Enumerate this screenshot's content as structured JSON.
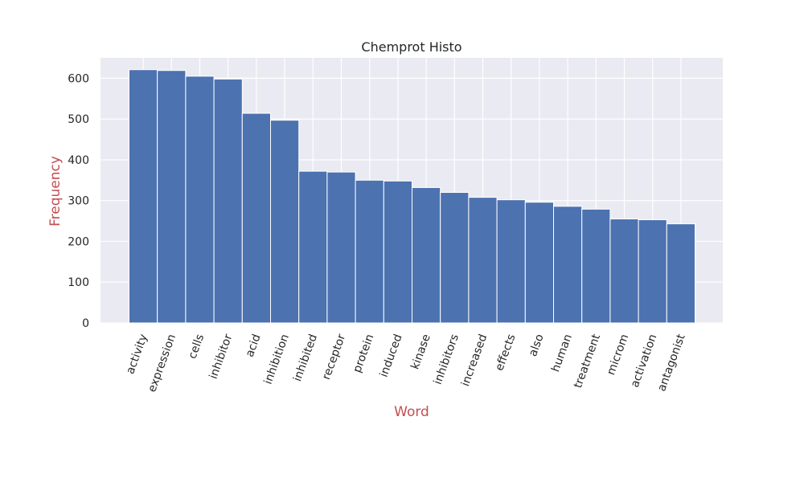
{
  "chart_data": {
    "type": "bar",
    "title": "Chemprot Histo",
    "xlabel": "Word",
    "ylabel": "Frequency",
    "categories": [
      "activity",
      "expression",
      "cells",
      "inhibitor",
      "acid",
      "inhibition",
      "inhibited",
      "receptor",
      "protein",
      "induced",
      "kinase",
      "inhibitors",
      "increased",
      "effects",
      "also",
      "human",
      "treatment",
      "microm",
      "activation",
      "antagonist"
    ],
    "values": [
      621,
      619,
      605,
      598,
      514,
      497,
      372,
      370,
      350,
      348,
      332,
      320,
      308,
      302,
      296,
      286,
      279,
      255,
      253,
      243
    ],
    "ylim": [
      0,
      650
    ],
    "yticks": [
      0,
      100,
      200,
      300,
      400,
      500,
      600
    ],
    "grid": true,
    "colors": {
      "bar": "#4c72b0",
      "plot_background": "#eaeaf2",
      "grid": "#ffffff",
      "axis_label": "#c44e52",
      "text": "#262626"
    }
  }
}
